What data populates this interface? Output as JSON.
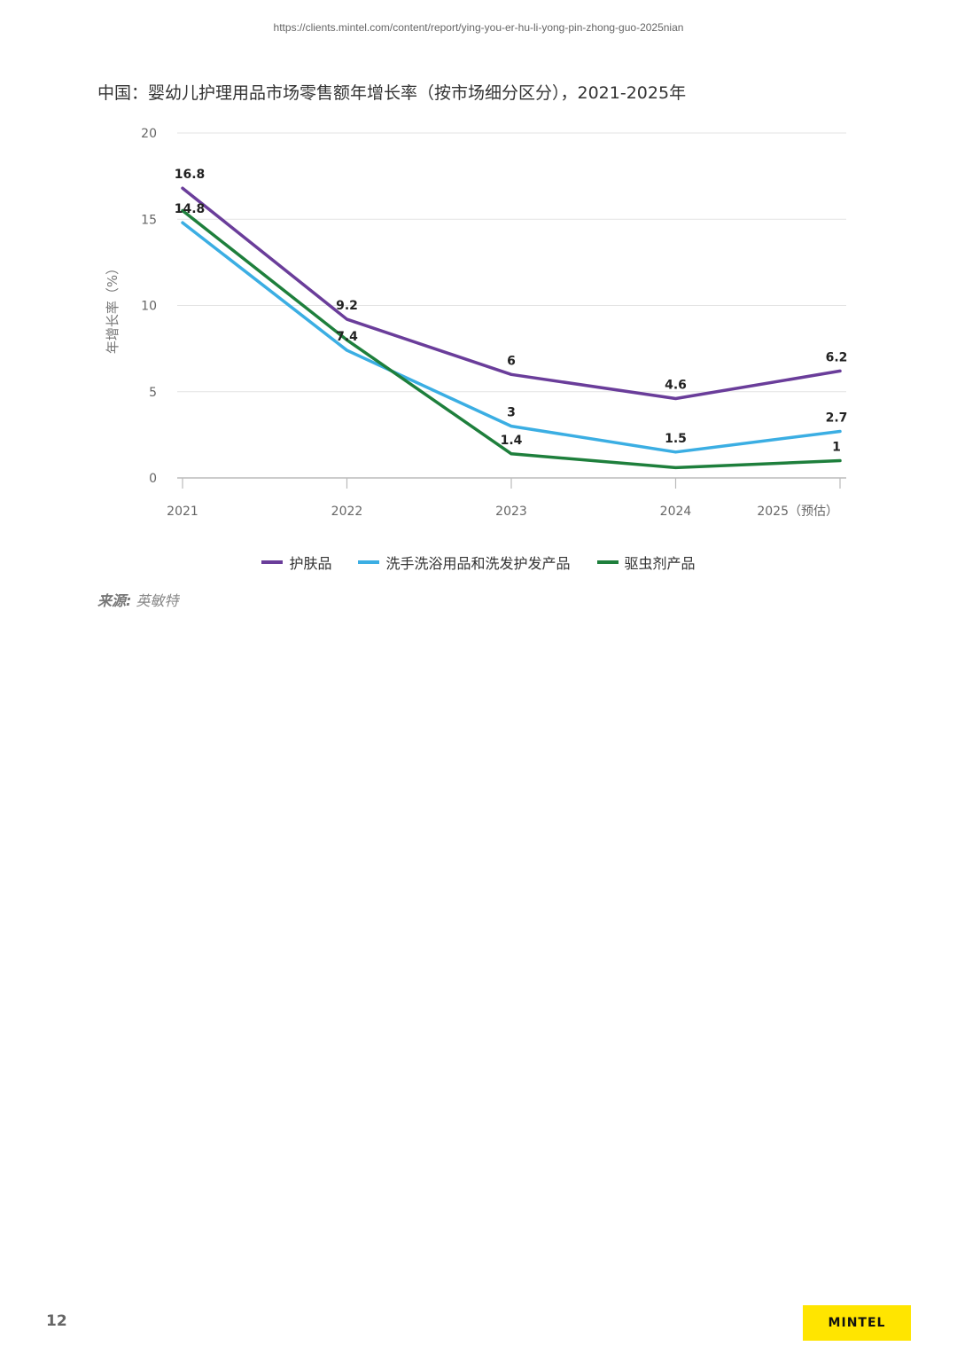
{
  "header": {
    "url": "https://clients.mintel.com/content/report/ying-you-er-hu-li-yong-pin-zhong-guo-2025nian"
  },
  "footer": {
    "page_number": "12",
    "logo_text": "MINTEL",
    "logo_color": "#FFE500"
  },
  "source": {
    "label": "来源:",
    "value": " 英敏特"
  },
  "chart_data": {
    "type": "line",
    "title": "中国：婴幼儿护理用品市场零售额年增长率（按市场细分区分），2021-2025年",
    "ylabel": "年增长率（%）",
    "xlabel": "",
    "categories": [
      "2021",
      "2022",
      "2023",
      "2024",
      "2025（预估）"
    ],
    "ylim": [
      0,
      20
    ],
    "yticks": [
      "0",
      "5",
      "10",
      "15",
      "20"
    ],
    "grid": true,
    "legend_position": "bottom",
    "series": [
      {
        "name": "护肤品",
        "color": "#6A3D9A",
        "values": [
          16.8,
          9.2,
          6,
          4.6,
          6.2
        ],
        "labels": [
          "16.8",
          "9.2",
          "6",
          "4.6",
          "6.2"
        ]
      },
      {
        "name": "洗手洗浴用品和洗发护发产品",
        "color": "#3BAEE3",
        "values": [
          14.8,
          7.4,
          3,
          1.5,
          2.7
        ],
        "labels": [
          "14.8",
          "7.4",
          "3",
          "1.5",
          "2.7"
        ]
      },
      {
        "name": "驱虫剂产品",
        "color": "#1E7F3C",
        "values": [
          15.5,
          8.0,
          1.4,
          0.6,
          1
        ],
        "labels": [
          "",
          "",
          "1.4",
          "",
          "1"
        ]
      }
    ]
  }
}
